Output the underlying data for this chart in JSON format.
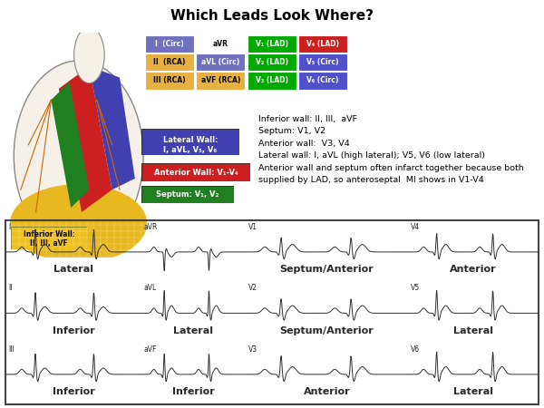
{
  "title": "Which Leads Look Where?",
  "title_fontsize": 11,
  "title_fontweight": "bold",
  "lead_table": {
    "rows": [
      [
        "I  (Circ)",
        "aVR",
        "V₁ (LAD)",
        "V₄ (LAD)"
      ],
      [
        "II  (RCA)",
        "aVL (Circ)",
        "V₂ (LAD)",
        "V₅ (Circ)"
      ],
      [
        "III (RCA)",
        "aVF (RCA)",
        "V₃ (LAD)",
        "V₆ (Circ)"
      ]
    ],
    "col_colors": [
      [
        "#7070c0",
        "#ffffff",
        "#00aa00",
        "#cc2020"
      ],
      [
        "#e8b040",
        "#7070c0",
        "#00aa00",
        "#5050cc"
      ],
      [
        "#e8b040",
        "#e8b040",
        "#00aa00",
        "#5050cc"
      ]
    ],
    "text_colors": [
      [
        "#ffffff",
        "#000000",
        "#ffffff",
        "#ffffff"
      ],
      [
        "#000000",
        "#ffffff",
        "#ffffff",
        "#ffffff"
      ],
      [
        "#000000",
        "#000000",
        "#ffffff",
        "#ffffff"
      ]
    ]
  },
  "info_box_text": "Inferior wall: II, III,  aVF\nSeptum: V1, V2\nAnterior wall:  V3, V4\nLateral wall: I, aVL (high lateral); V5, V6 (low lateral)\nAnterior wall and septum often infarct together because both\nsupplied by LAD, so anteroseptal  MI shows in V1-V4",
  "ecg_grid": {
    "rows": 3,
    "cols": 4,
    "cell_labels": [
      [
        "Lateral",
        "",
        "Septum/Anterior",
        "Anterior"
      ],
      [
        "Inferior",
        "Lateral",
        "Septum/Anterior",
        "Lateral"
      ],
      [
        "Inferior",
        "Inferior",
        "Anterior",
        "Lateral"
      ]
    ],
    "cell_lead_names": [
      [
        "I",
        "aVR",
        "V1",
        "V4"
      ],
      [
        "II",
        "aVL",
        "V2",
        "V5"
      ],
      [
        "III",
        "aVF",
        "V3",
        "V6"
      ]
    ],
    "cell_colors": [
      [
        "#87BEDB",
        "#c0c0c0",
        "#e8808a",
        "#e8808a"
      ],
      [
        "#c8cc50",
        "#87BEDB",
        "#e8808a",
        "#87BEDB"
      ],
      [
        "#c8cc50",
        "#c8cc50",
        "#e8808a",
        "#87BEDB"
      ]
    ]
  },
  "background_color": "#ffffff"
}
